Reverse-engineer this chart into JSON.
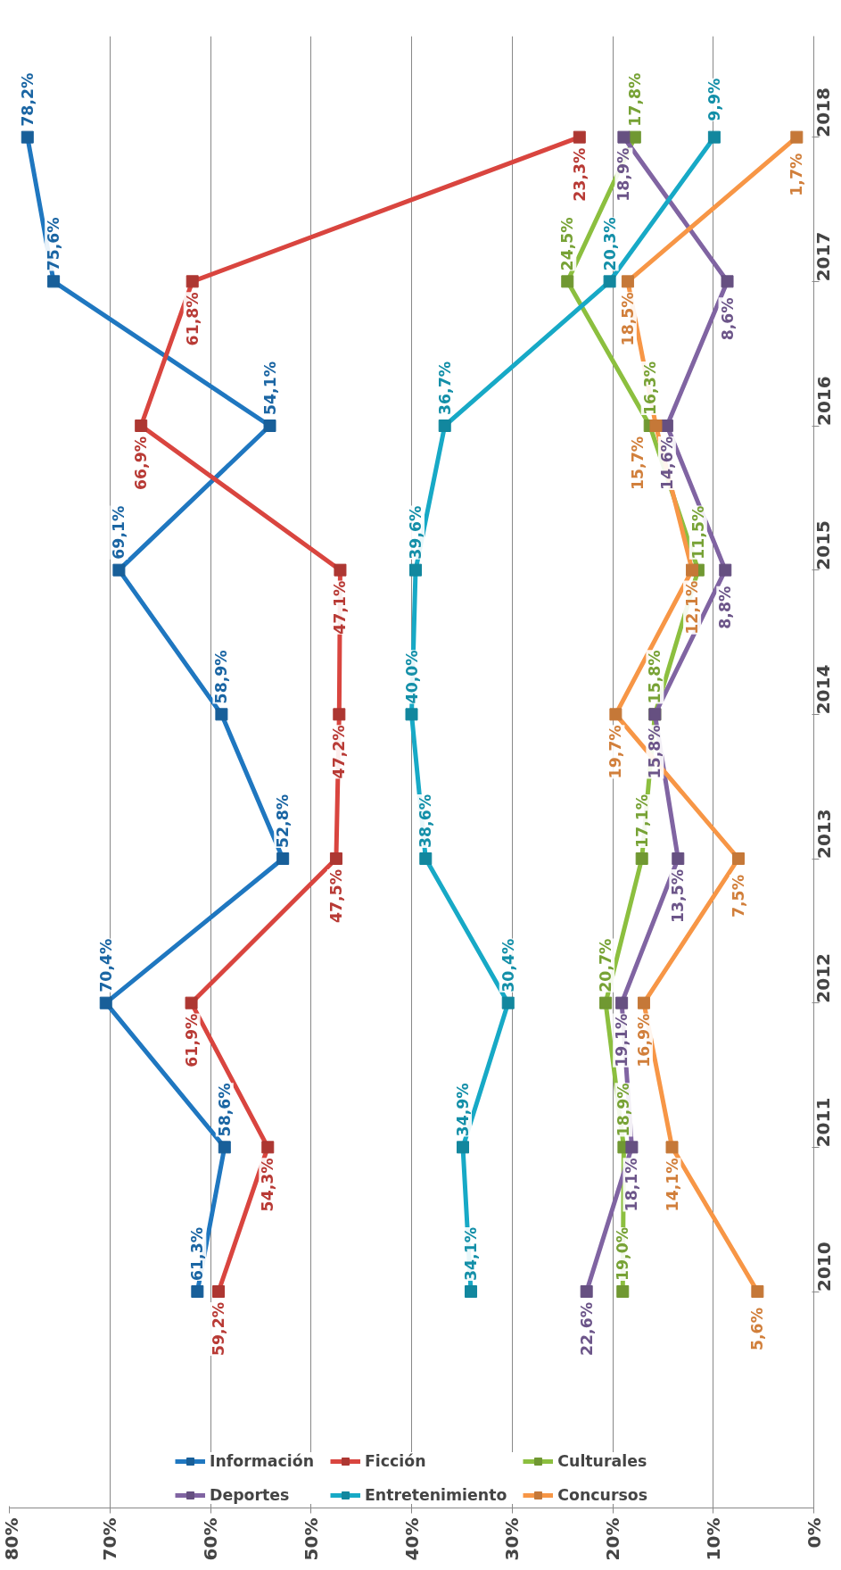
{
  "chart_data": {
    "type": "line",
    "orientation": "horizontal",
    "categories": [
      "2018",
      "2017",
      "2016",
      "2015",
      "2014",
      "2013",
      "2012",
      "2011",
      "2010"
    ],
    "series": [
      {
        "name": "Información",
        "color": "#1f77c0",
        "values": [
          78.2,
          75.6,
          54.1,
          69.1,
          58.9,
          52.8,
          70.4,
          58.6,
          61.3
        ],
        "value_labels": [
          "78,2%",
          "75,6%",
          "54,1%",
          "69,1%",
          "58,9%",
          "52,8%",
          "70,4%",
          "58,6%",
          "61,3%"
        ]
      },
      {
        "name": "Ficción",
        "color": "#d9453f",
        "values": [
          23.3,
          61.8,
          66.9,
          47.1,
          47.2,
          47.5,
          61.9,
          54.3,
          59.2
        ],
        "value_labels": [
          "23,3%",
          "61,8%",
          "66,9%",
          "47,1%",
          "47,2%",
          "47,5%",
          "61,9%",
          "54,3%",
          "59,2%"
        ]
      },
      {
        "name": "Culturales",
        "color": "#8cbf3f",
        "values": [
          17.8,
          24.5,
          16.3,
          11.5,
          15.8,
          17.1,
          20.7,
          18.9,
          19.0
        ],
        "value_labels": [
          "17,8%",
          "24,5%",
          "16,3%",
          "11,5%",
          "15,8%",
          "17,1%",
          "20,7%",
          "18,9%",
          "19,0%"
        ]
      },
      {
        "name": "Deportes",
        "color": "#8064a2",
        "values": [
          18.9,
          8.6,
          14.6,
          8.8,
          15.8,
          13.5,
          19.1,
          18.1,
          22.6
        ],
        "value_labels": [
          "18,9%",
          "8,6%",
          "14,6%",
          "8,8%",
          "15,8%",
          "13,5%",
          "19,1%",
          "18,1%",
          "22,6%"
        ]
      },
      {
        "name": "Entretenimiento",
        "color": "#17a9c6",
        "values": [
          9.9,
          20.3,
          36.7,
          39.6,
          40.0,
          38.6,
          30.4,
          34.9,
          34.1
        ],
        "value_labels": [
          "9,9%",
          "20,3%",
          "36,7%",
          "39,6%",
          "40,0%",
          "38,6%",
          "30,4%",
          "34,9%",
          "34,1%"
        ]
      },
      {
        "name": "Concursos",
        "color": "#f79646",
        "values": [
          1.7,
          18.5,
          15.7,
          12.1,
          19.7,
          7.5,
          16.9,
          14.1,
          5.6
        ],
        "value_labels": [
          "1,7%",
          "18,5%",
          "15,7%",
          "12,1%",
          "19,7%",
          "7,5%",
          "16,9%",
          "14,1%",
          "5,6%"
        ]
      }
    ],
    "xlim": [
      80,
      0
    ],
    "xticks": [
      {
        "value": 0,
        "label": "0%"
      },
      {
        "value": 10,
        "label": "10%"
      },
      {
        "value": 20,
        "label": "20%"
      },
      {
        "value": 30,
        "label": "30%"
      },
      {
        "value": 40,
        "label": "40%"
      },
      {
        "value": 50,
        "label": "50%"
      },
      {
        "value": 60,
        "label": "60%"
      },
      {
        "value": 70,
        "label": "70%"
      },
      {
        "value": 80,
        "label": "80%"
      }
    ],
    "grid": "x",
    "legend": "bottom",
    "marker": "square",
    "line_style": "solid"
  }
}
